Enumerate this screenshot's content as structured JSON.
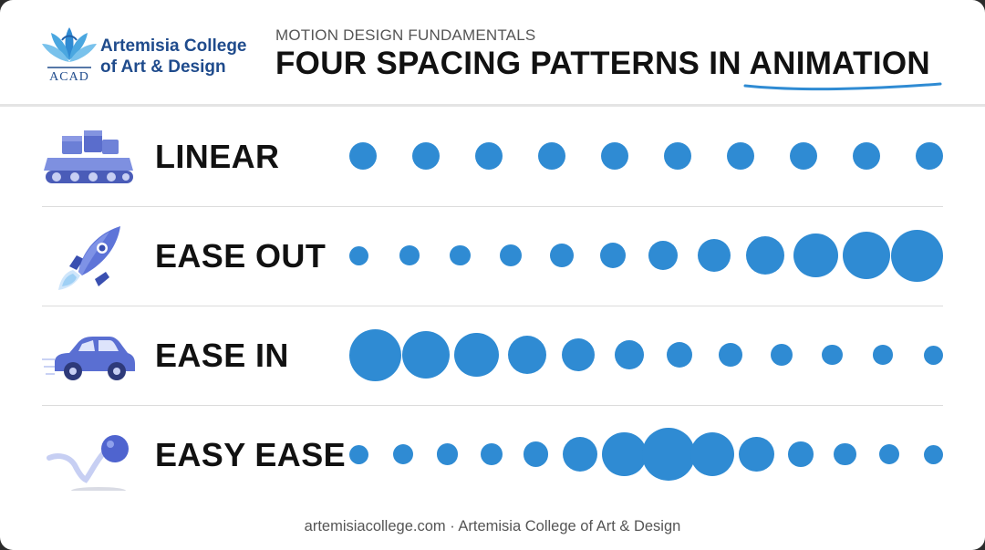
{
  "header": {
    "brand_line1": "Artemisia College",
    "brand_line2": "of Art & Design",
    "logo_text": "ACAD",
    "eyebrow": "MOTION DESIGN FUNDAMENTALS",
    "headline": "FOUR SPACING PATTERNS IN ANIMATION",
    "accent_color": "#2f8bd3",
    "brand_color": "#1f4b8c"
  },
  "rows": [
    {
      "label": "LINEAR",
      "icon": "conveyor-belt-icon",
      "dot_sizes": [
        1,
        1,
        1,
        1,
        1,
        1,
        1,
        1,
        1,
        1
      ]
    },
    {
      "label": "EASE OUT",
      "icon": "rocket-icon",
      "dot_sizes": [
        0.7,
        0.72,
        0.76,
        0.8,
        0.86,
        0.94,
        1.06,
        1.2,
        1.4,
        1.62,
        1.75,
        1.9
      ]
    },
    {
      "label": "EASE IN",
      "icon": "car-icon",
      "dot_sizes": [
        1.9,
        1.75,
        1.62,
        1.4,
        1.2,
        1.06,
        0.94,
        0.86,
        0.8,
        0.76,
        0.72,
        0.7
      ]
    },
    {
      "label": "EASY EASE",
      "icon": "bouncing-ball-icon",
      "dot_sizes": [
        0.7,
        0.74,
        0.78,
        0.82,
        0.92,
        1.28,
        1.62,
        1.92,
        1.62,
        1.28,
        0.92,
        0.82,
        0.74,
        0.7
      ]
    }
  ],
  "footer": {
    "text": "artemisiacollege.com · Artemisia College of Art & Design"
  }
}
